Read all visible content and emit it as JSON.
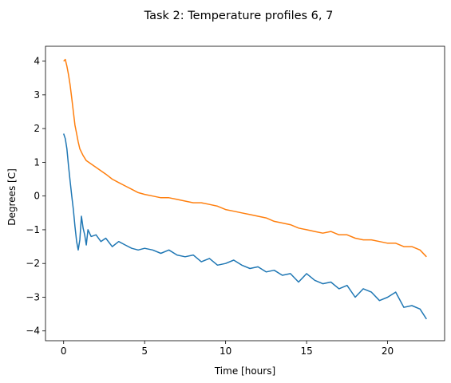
{
  "chart_data": {
    "type": "line",
    "title": "Task 2: Temperature profiles 6, 7",
    "xlabel": "Time [hours]",
    "ylabel": "Degrees [C]",
    "xlim": [
      -1.12,
      23.52
    ],
    "ylim": [
      -4.29,
      4.44
    ],
    "xticks": [
      0,
      5,
      10,
      15,
      20
    ],
    "yticks": [
      -4,
      -3,
      -2,
      -1,
      0,
      1,
      2,
      3,
      4
    ],
    "grid": false,
    "legend": "none",
    "series": [
      {
        "color": "#1f77b4",
        "x": [
          0.0,
          0.1,
          0.2,
          0.3,
          0.4,
          0.5,
          0.6,
          0.7,
          0.8,
          0.9,
          1.0,
          1.1,
          1.2,
          1.3,
          1.4,
          1.5,
          1.7,
          2.0,
          2.3,
          2.6,
          3.0,
          3.4,
          3.8,
          4.2,
          4.6,
          5.0,
          5.5,
          6.0,
          6.5,
          7.0,
          7.5,
          8.0,
          8.5,
          9.0,
          9.5,
          10.0,
          10.5,
          11.0,
          11.5,
          12.0,
          12.5,
          13.0,
          13.5,
          14.0,
          14.5,
          15.0,
          15.5,
          16.0,
          16.5,
          17.0,
          17.5,
          18.0,
          18.5,
          19.0,
          19.5,
          20.0,
          20.5,
          21.0,
          21.5,
          22.0,
          22.4
        ],
        "y": [
          1.85,
          1.7,
          1.4,
          0.9,
          0.45,
          0.0,
          -0.4,
          -0.9,
          -1.35,
          -1.6,
          -1.3,
          -0.6,
          -0.95,
          -1.15,
          -1.45,
          -1.0,
          -1.2,
          -1.15,
          -1.35,
          -1.25,
          -1.5,
          -1.35,
          -1.45,
          -1.55,
          -1.6,
          -1.55,
          -1.6,
          -1.7,
          -1.6,
          -1.75,
          -1.8,
          -1.75,
          -1.95,
          -1.85,
          -2.05,
          -2.0,
          -1.9,
          -2.05,
          -2.15,
          -2.1,
          -2.25,
          -2.2,
          -2.35,
          -2.3,
          -2.55,
          -2.3,
          -2.5,
          -2.6,
          -2.55,
          -2.75,
          -2.65,
          -3.0,
          -2.75,
          -2.85,
          -3.1,
          -3.0,
          -2.85,
          -3.3,
          -3.25,
          -3.35,
          -3.65
        ]
      },
      {
        "color": "#ff7f0e",
        "x": [
          0.0,
          0.1,
          0.2,
          0.3,
          0.4,
          0.5,
          0.6,
          0.7,
          0.8,
          0.9,
          1.0,
          1.2,
          1.4,
          1.7,
          2.0,
          2.3,
          2.6,
          3.0,
          3.4,
          3.8,
          4.2,
          4.6,
          5.0,
          5.5,
          6.0,
          6.5,
          7.0,
          7.5,
          8.0,
          8.5,
          9.0,
          9.5,
          10.0,
          10.5,
          11.0,
          11.5,
          12.0,
          12.5,
          13.0,
          13.5,
          14.0,
          14.5,
          15.0,
          15.5,
          16.0,
          16.5,
          17.0,
          17.5,
          18.0,
          18.5,
          19.0,
          19.5,
          20.0,
          20.5,
          21.0,
          21.5,
          22.0,
          22.4
        ],
        "y": [
          4.0,
          4.05,
          3.85,
          3.6,
          3.3,
          2.9,
          2.5,
          2.1,
          1.85,
          1.6,
          1.4,
          1.2,
          1.05,
          0.95,
          0.85,
          0.75,
          0.65,
          0.5,
          0.4,
          0.3,
          0.2,
          0.1,
          0.05,
          0.0,
          -0.05,
          -0.05,
          -0.1,
          -0.15,
          -0.2,
          -0.2,
          -0.25,
          -0.3,
          -0.4,
          -0.45,
          -0.5,
          -0.55,
          -0.6,
          -0.65,
          -0.75,
          -0.8,
          -0.85,
          -0.95,
          -1.0,
          -1.05,
          -1.1,
          -1.05,
          -1.15,
          -1.15,
          -1.25,
          -1.3,
          -1.3,
          -1.35,
          -1.4,
          -1.4,
          -1.5,
          -1.5,
          -1.6,
          -1.8
        ]
      }
    ]
  }
}
